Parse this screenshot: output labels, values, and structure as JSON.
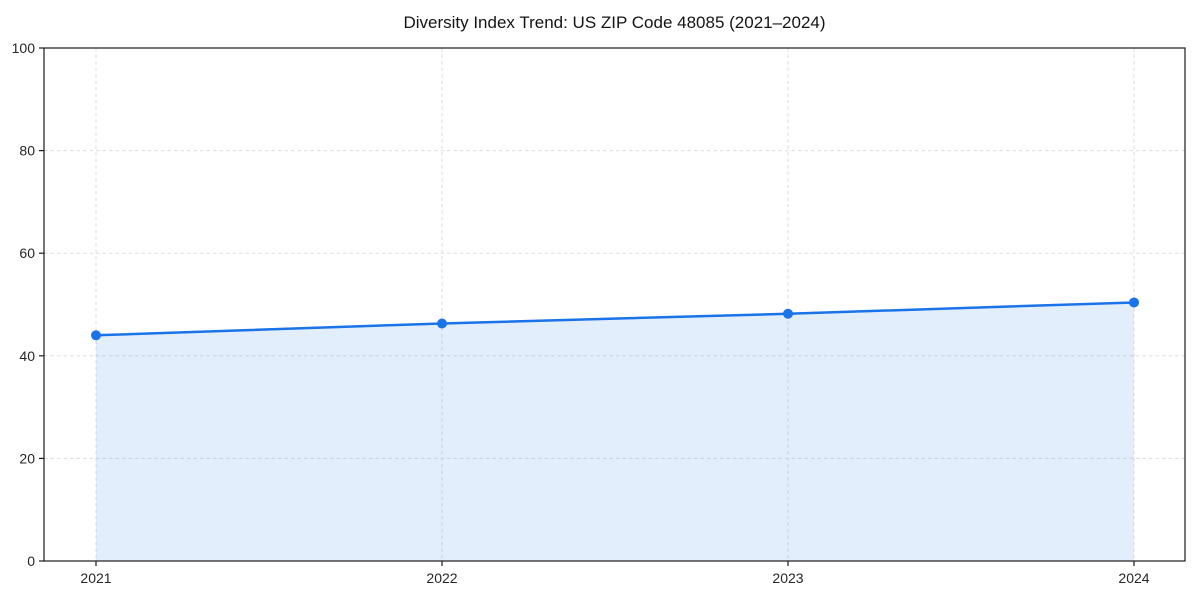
{
  "chart_data": {
    "type": "area",
    "title": "Diversity Index Trend: US ZIP Code 48085 (2021–2024)",
    "x": [
      "2021",
      "2022",
      "2023",
      "2024"
    ],
    "values": [
      44.0,
      46.3,
      48.2,
      50.4
    ],
    "ylim": [
      0,
      100
    ],
    "yticks": [
      0,
      20,
      40,
      60,
      80,
      100
    ],
    "grid": true,
    "grid_style": "dashed",
    "legend": "none",
    "line_color": "#1a73e8",
    "point_color": "#1a73e8",
    "fill_color": "rgba(26,115,232,0.12)",
    "grid_color": "#dddddd",
    "axis_color": "#1a1a1a",
    "tick_label_color": "#262626",
    "background_color": "#ffffff"
  }
}
